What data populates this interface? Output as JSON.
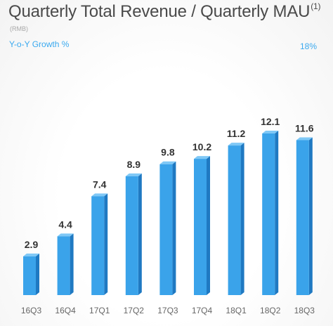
{
  "header": {
    "title": "Quarterly Total Revenue / Quarterly MAU",
    "title_footnote": "(1)",
    "unit": "(RMB)",
    "growth_label": "Y-o-Y Growth %",
    "growth_value": "18%"
  },
  "colors": {
    "bar_front": "#3aa3ea",
    "bar_side": "#1f79c2",
    "bar_top": "#7fc8f6",
    "value_text": "#333333",
    "category_text": "#666666",
    "accent": "#3aa9ef"
  },
  "chart_data": {
    "type": "bar",
    "categories": [
      "16Q3",
      "16Q4",
      "17Q1",
      "17Q2",
      "17Q3",
      "17Q4",
      "18Q1",
      "18Q2",
      "18Q3"
    ],
    "values": [
      2.9,
      4.4,
      7.4,
      8.9,
      9.8,
      10.2,
      11.2,
      12.1,
      11.6
    ],
    "data_labels": [
      "2.9",
      "4.4",
      "7.4",
      "8.9",
      "9.8",
      "10.2",
      "11.2",
      "12.1",
      "11.6"
    ],
    "title": "Quarterly Total Revenue / Quarterly MAU",
    "xlabel": "",
    "ylabel": "",
    "ylim": [
      0,
      12.1
    ],
    "grid": false,
    "legend": "none"
  }
}
